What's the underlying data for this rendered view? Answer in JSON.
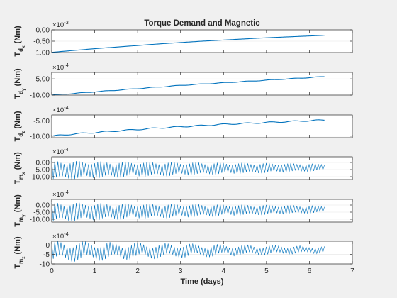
{
  "window": {
    "background": "#f0f0f0"
  },
  "colors": {
    "line": "#0072bd",
    "axes_bg": "#ffffff",
    "axis": "#262626",
    "grid": "#e3e3e3"
  },
  "chart_data": [
    {
      "type": "line",
      "title": "Torque Demand and Magnetic",
      "ylabel": "T_dx (Nm)",
      "exponent": "×10^-3",
      "xlim": [
        0,
        7
      ],
      "ylim": [
        -1.0,
        0.0
      ],
      "ytick_labels": [
        "-1.00",
        "-0.50",
        "0.00"
      ],
      "ytick_values": [
        -1.0,
        -0.5,
        0.0
      ],
      "series": [
        {
          "shape": "smooth",
          "x": [
            0,
            0.5,
            1,
            1.5,
            2,
            2.5,
            3,
            3.5,
            4,
            4.5,
            5,
            5.5,
            6,
            6.35
          ],
          "y": [
            -0.99,
            -0.91,
            -0.83,
            -0.76,
            -0.69,
            -0.62,
            -0.56,
            -0.5,
            -0.45,
            -0.4,
            -0.35,
            -0.31,
            -0.27,
            -0.24
          ]
        }
      ]
    },
    {
      "type": "line",
      "ylabel": "T_dy (Nm)",
      "exponent": "×10^-4",
      "xlim": [
        0,
        7
      ],
      "ylim": [
        -10.0,
        -3.0
      ],
      "ytick_labels": [
        "-10.00",
        "-5.00"
      ],
      "ytick_values": [
        -10.0,
        -5.0
      ],
      "series": [
        {
          "shape": "wavy",
          "wave_amp": 0.08,
          "wave_period": 0.55,
          "x": [
            0,
            0.5,
            1,
            1.5,
            2,
            2.5,
            3,
            3.5,
            4,
            4.5,
            5,
            5.5,
            6,
            6.35
          ],
          "y": [
            -10.0,
            -9.5,
            -9.0,
            -8.5,
            -8.0,
            -7.5,
            -7.0,
            -6.6,
            -6.2,
            -5.8,
            -5.4,
            -5.0,
            -4.6,
            -4.3
          ]
        }
      ]
    },
    {
      "type": "line",
      "ylabel": "T_dz (Nm)",
      "exponent": "×10^-4",
      "xlim": [
        0,
        7
      ],
      "ylim": [
        -10.5,
        -3.0
      ],
      "ytick_labels": [
        "-10.00",
        "-5.00"
      ],
      "ytick_values": [
        -10.0,
        -5.0
      ],
      "series": [
        {
          "shape": "wavy",
          "wave_amp": 0.18,
          "wave_period": 0.55,
          "x": [
            0,
            0.5,
            1,
            1.5,
            2,
            2.5,
            3,
            3.5,
            4,
            4.5,
            5,
            5.5,
            6,
            6.35
          ],
          "y": [
            -10.0,
            -9.3,
            -8.8,
            -8.3,
            -7.8,
            -7.3,
            -6.9,
            -6.5,
            -6.1,
            -5.8,
            -5.5,
            -5.2,
            -4.9,
            -4.7
          ]
        }
      ]
    },
    {
      "type": "line",
      "ylabel": "T_mx (Nm)",
      "exponent": "×10^-4",
      "xlim": [
        0,
        7
      ],
      "ylim": [
        -12.0,
        4.0
      ],
      "ytick_labels": [
        "-10.00",
        "-5.00",
        "0.00"
      ],
      "ytick_values": [
        -10.0,
        -5.0,
        0.0
      ],
      "series": [
        {
          "shape": "oscillating",
          "center": -5.5,
          "center_end": -3.5,
          "amp_start": 6.5,
          "amp_end": 2.5,
          "envelope_amp_start": 0.8,
          "envelope_amp_end": 0.4,
          "envelope_period": 0.55,
          "cycles_per_day": 14,
          "x_start": 0,
          "x_end": 6.35
        }
      ]
    },
    {
      "type": "line",
      "ylabel": "T_my (Nm)",
      "exponent": "×10^-4",
      "xlim": [
        0,
        7
      ],
      "ylim": [
        -12.0,
        4.0
      ],
      "ytick_labels": [
        "-10.00",
        "-5.00",
        "0.00"
      ],
      "ytick_values": [
        -10.0,
        -5.0,
        0.0
      ],
      "series": [
        {
          "shape": "oscillating",
          "center": -5.0,
          "center_end": -3.0,
          "amp_start": 6.5,
          "amp_end": 2.5,
          "envelope_amp_start": 1.0,
          "envelope_amp_end": 0.4,
          "envelope_period": 0.55,
          "cycles_per_day": 14,
          "x_start": 0,
          "x_end": 6.35
        }
      ]
    },
    {
      "type": "line",
      "ylabel": "T_mz (Nm)",
      "exponent": "×10^-4",
      "xlim": [
        0,
        7
      ],
      "ylim": [
        -10.0,
        2.0
      ],
      "ytick_labels": [
        "-10",
        "-5",
        "0"
      ],
      "ytick_values": [
        -10.0,
        -5.0,
        0.0
      ],
      "xlabel": "Time (days)",
      "xtick_labels": [
        "0",
        "1",
        "2",
        "3",
        "4",
        "5",
        "6",
        "7"
      ],
      "xtick_values": [
        0,
        1,
        2,
        3,
        4,
        5,
        6,
        7
      ],
      "series": [
        {
          "shape": "oscillating",
          "center": -3.5,
          "center_end": -2.5,
          "amp_start": 4.5,
          "amp_end": 1.5,
          "envelope_amp_start": 1.8,
          "envelope_amp_end": 0.6,
          "envelope_period": 0.63,
          "cycles_per_day": 14,
          "x_start": 0,
          "x_end": 6.35
        }
      ]
    }
  ]
}
